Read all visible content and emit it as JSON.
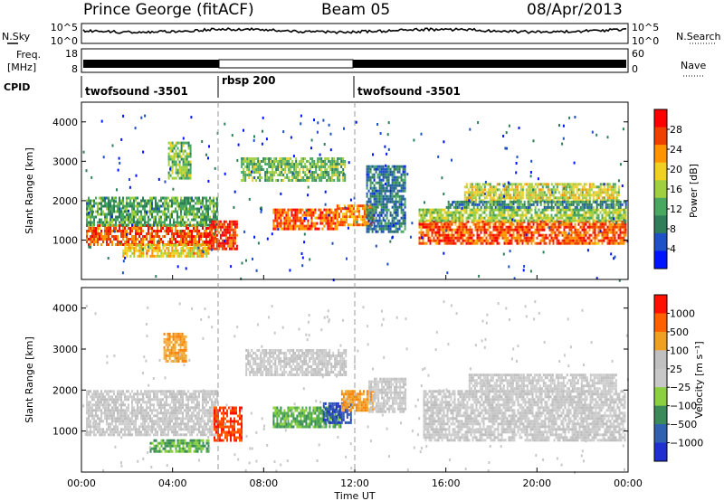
{
  "header": {
    "station": "Prince George (fitACF)",
    "beam": "Beam 05",
    "date": "08/Apr/2013"
  },
  "meta_panels": {
    "nsky_label": "N.Sky",
    "nsearch_label": "N.Search",
    "noise_ticks": [
      "10^5",
      "10^0"
    ],
    "freq_label_line1": "Freq.",
    "freq_label_line2": "[MHz]",
    "freq_ticks": [
      "18",
      "8"
    ],
    "nave_label": "Nave",
    "nave_ticks": [
      "60",
      "0"
    ],
    "cpid_label": "CPID",
    "cpid_segments": [
      {
        "label": "twofsound -3501",
        "start": 0,
        "end": 6
      },
      {
        "label": "rbsp 200",
        "start": 6,
        "end": 12
      },
      {
        "label": "twofsound -3501",
        "start": 12,
        "end": 24
      }
    ]
  },
  "chart_data": [
    {
      "type": "heatmap",
      "name": "power",
      "xlabel": "Time UT",
      "ylabel": "Slant Range [km]",
      "xlim": [
        0,
        24
      ],
      "ylim": [
        0,
        4500
      ],
      "x_ticks": [
        "00:00",
        "04:00",
        "08:00",
        "12:00",
        "16:00",
        "20:00",
        "00:00"
      ],
      "y_ticks": [
        1000,
        2000,
        3000,
        4000
      ],
      "colorbar": {
        "label": "Power [dB]",
        "ticks": [
          4,
          8,
          12,
          16,
          20,
          24,
          28
        ],
        "range": [
          0,
          32
        ],
        "colors": [
          "#0014ff",
          "#1e50c8",
          "#2e7e5a",
          "#48a860",
          "#a0d040",
          "#f0d020",
          "#ff9400",
          "#f04000",
          "#ff0000"
        ]
      },
      "regions": [
        {
          "t0": 0.2,
          "t1": 6.0,
          "r0": 900,
          "r1": 1400,
          "level": 26
        },
        {
          "t0": 0.2,
          "t1": 6.0,
          "r0": 1400,
          "r1": 2100,
          "level": 12
        },
        {
          "t0": 5.6,
          "t1": 6.8,
          "r0": 800,
          "r1": 1500,
          "level": 28
        },
        {
          "t0": 1.8,
          "t1": 5.6,
          "r0": 600,
          "r1": 900,
          "level": 20
        },
        {
          "t0": 3.8,
          "t1": 4.8,
          "r0": 2600,
          "r1": 3500,
          "level": 14
        },
        {
          "t0": 7.0,
          "t1": 11.6,
          "r0": 2500,
          "r1": 3100,
          "level": 14
        },
        {
          "t0": 8.4,
          "t1": 11.2,
          "r0": 1300,
          "r1": 1800,
          "level": 26
        },
        {
          "t0": 11.2,
          "t1": 12.8,
          "r0": 1400,
          "r1": 1900,
          "level": 24
        },
        {
          "t0": 12.5,
          "t1": 14.2,
          "r0": 1200,
          "r1": 2900,
          "level": 8
        },
        {
          "t0": 14.8,
          "t1": 23.9,
          "r0": 900,
          "r1": 1500,
          "level": 26
        },
        {
          "t0": 14.8,
          "t1": 23.9,
          "r0": 1500,
          "r1": 1800,
          "level": 16
        },
        {
          "t0": 16.8,
          "t1": 23.6,
          "r0": 2000,
          "r1": 2450,
          "level": 18
        },
        {
          "t0": 16.0,
          "t1": 23.9,
          "r0": 1800,
          "r1": 2000,
          "level": 10
        }
      ]
    },
    {
      "type": "heatmap",
      "name": "velocity",
      "xlabel": "Time UT",
      "ylabel": "Slant Range [km]",
      "xlim": [
        0,
        24
      ],
      "ylim": [
        0,
        4500
      ],
      "x_ticks": [
        "00:00",
        "04:00",
        "08:00",
        "12:00",
        "16:00",
        "20:00",
        "00:00"
      ],
      "y_ticks": [
        1000,
        2000,
        3000,
        4000
      ],
      "colorbar": {
        "label": "Velocity [m s⁻¹]",
        "ticks": [
          "1000",
          "500",
          "100",
          "25",
          "−25",
          "−100",
          "−500",
          "−1000"
        ],
        "colors": [
          "#2030d0",
          "#3060b0",
          "#3a8a5a",
          "#8ad040",
          "#c8c8c8",
          "#c0c0c0",
          "#f0a020",
          "#ff6000",
          "#ff1000"
        ]
      },
      "regions": [
        {
          "t0": 0.2,
          "t1": 6.0,
          "r0": 900,
          "r1": 2000,
          "cls": "gray"
        },
        {
          "t0": 3.6,
          "t1": 4.6,
          "r0": 2700,
          "r1": 3400,
          "cls": "orange"
        },
        {
          "t0": 5.8,
          "t1": 7.0,
          "r0": 800,
          "r1": 1600,
          "cls": "red"
        },
        {
          "t0": 3.0,
          "t1": 5.6,
          "r0": 500,
          "r1": 800,
          "cls": "green"
        },
        {
          "t0": 7.2,
          "t1": 11.6,
          "r0": 2400,
          "r1": 3000,
          "cls": "gray"
        },
        {
          "t0": 8.4,
          "t1": 11.4,
          "r0": 1100,
          "r1": 1600,
          "cls": "green"
        },
        {
          "t0": 10.6,
          "t1": 11.8,
          "r0": 1200,
          "r1": 1700,
          "cls": "blue"
        },
        {
          "t0": 11.4,
          "t1": 12.8,
          "r0": 1500,
          "r1": 2000,
          "cls": "orange"
        },
        {
          "t0": 12.6,
          "t1": 14.2,
          "r0": 1500,
          "r1": 2300,
          "cls": "gray"
        },
        {
          "t0": 15.0,
          "t1": 23.9,
          "r0": 800,
          "r1": 2000,
          "cls": "gray"
        },
        {
          "t0": 17.0,
          "t1": 23.5,
          "r0": 2000,
          "r1": 2400,
          "cls": "gray"
        }
      ]
    }
  ]
}
